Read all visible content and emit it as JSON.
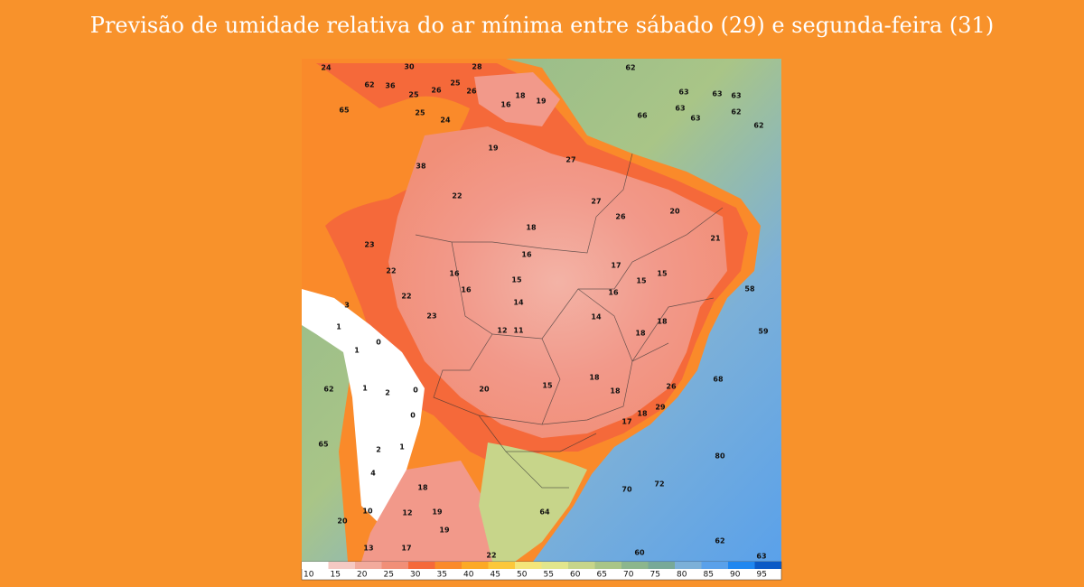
{
  "title": "Previsão de umidade relativa do ar mínima entre sábado (29) e segunda-feira (31)",
  "colorbar": {
    "ticks": [
      10,
      15,
      20,
      25,
      30,
      35,
      40,
      45,
      50,
      55,
      60,
      65,
      70,
      75,
      80,
      85,
      90,
      95
    ],
    "colors": [
      "#ffffff",
      "#f5c9c3",
      "#f2aa9c",
      "#f18f78",
      "#f5693a",
      "#fa8a2a",
      "#fca926",
      "#fcc73a",
      "#f4e57a",
      "#e2e68c",
      "#c7d58a",
      "#a9c587",
      "#8cb68d",
      "#78a998",
      "#7cb0d8",
      "#5aa1ea",
      "#1f87f0",
      "#0b5ac6"
    ]
  },
  "map_labels": [
    24,
    30,
    28,
    62,
    62,
    36,
    25,
    26,
    25,
    26,
    18,
    19,
    16,
    63,
    63,
    63,
    65,
    25,
    24,
    66,
    63,
    63,
    62,
    62,
    19,
    27,
    38,
    22,
    27,
    26,
    20,
    18,
    21,
    23,
    16,
    17,
    15,
    22,
    16,
    15,
    15,
    16,
    16,
    58,
    22,
    3,
    14,
    23,
    14,
    18,
    1,
    12,
    11,
    18,
    59,
    0,
    1,
    68,
    62,
    1,
    2,
    0,
    20,
    15,
    18,
    18,
    26,
    0,
    18,
    29,
    17,
    65,
    2,
    1,
    80,
    4,
    72,
    70,
    18,
    64,
    10,
    12,
    19,
    20,
    19,
    62,
    13,
    17,
    60,
    22,
    63
  ]
}
